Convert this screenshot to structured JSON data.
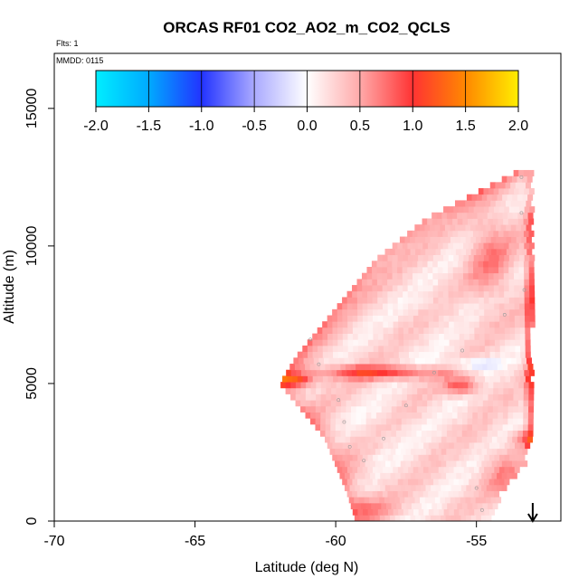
{
  "chart_data": {
    "type": "heatmap",
    "title": "ORCAS RF01 CO2_AO2_m_CO2_QCLS",
    "flights_label": "Flts: 1",
    "date_label": "MMDD: 0115",
    "xlabel": "Latitude (deg N)",
    "ylabel": "Altitude (m)",
    "xlim": [
      -70,
      -52
    ],
    "ylim": [
      0,
      17000
    ],
    "x_ticks": [
      -70,
      -65,
      -60,
      -55
    ],
    "y_ticks": [
      0,
      5000,
      10000,
      15000
    ],
    "colorbar": {
      "range": [
        -2.0,
        2.0
      ],
      "ticks": [
        "-2.0",
        "-1.5",
        "-1.0",
        "-0.5",
        "0.0",
        "0.5",
        "1.0",
        "1.5",
        "2.0"
      ],
      "stops": [
        {
          "v": -2.0,
          "color": "#00eeff"
        },
        {
          "v": -1.5,
          "color": "#00aaff"
        },
        {
          "v": -1.0,
          "color": "#2233ff"
        },
        {
          "v": -0.5,
          "color": "#aaaaff"
        },
        {
          "v": 0.0,
          "color": "#ffffff"
        },
        {
          "v": 0.5,
          "color": "#ffaaaa"
        },
        {
          "v": 1.0,
          "color": "#ff3333"
        },
        {
          "v": 1.5,
          "color": "#ff8800"
        },
        {
          "v": 2.0,
          "color": "#ffee00"
        }
      ]
    },
    "grid": {
      "lat_step": 0.18,
      "alt_step": 220,
      "boundary": [
        {
          "alt": 0,
          "lat_min": -59.3,
          "lat_max": -54.6
        },
        {
          "alt": 1000,
          "lat_min": -59.6,
          "lat_max": -54.2
        },
        {
          "alt": 2000,
          "lat_min": -60.0,
          "lat_max": -53.4
        },
        {
          "alt": 3000,
          "lat_min": -60.4,
          "lat_max": -53.1
        },
        {
          "alt": 4500,
          "lat_min": -61.6,
          "lat_max": -53.1
        },
        {
          "alt": 5000,
          "lat_min": -62.0,
          "lat_max": -53.1
        },
        {
          "alt": 6000,
          "lat_min": -61.4,
          "lat_max": -53.1
        },
        {
          "alt": 7000,
          "lat_min": -60.6,
          "lat_max": -53.1
        },
        {
          "alt": 8000,
          "lat_min": -59.8,
          "lat_max": -53.1
        },
        {
          "alt": 9500,
          "lat_min": -58.6,
          "lat_max": -53.1
        },
        {
          "alt": 11000,
          "lat_min": -56.8,
          "lat_max": -53.1
        },
        {
          "alt": 12800,
          "lat_min": -53.4,
          "lat_max": -53.1
        }
      ],
      "features": [
        {
          "lat": -53.1,
          "alt": 6500,
          "sl": 0.15,
          "sa": 6000,
          "v": 0.8
        },
        {
          "lat": -55.5,
          "alt": 4800,
          "sl": 0.6,
          "sa": 300,
          "v": 0.7
        },
        {
          "lat": -58.5,
          "alt": 5300,
          "sl": 2.2,
          "sa": 260,
          "v": 0.8
        },
        {
          "lat": -61.5,
          "alt": 5000,
          "sl": 0.7,
          "sa": 250,
          "v": 0.9
        },
        {
          "lat": -55.0,
          "alt": 5600,
          "sl": 0.8,
          "sa": 250,
          "v": -0.4
        },
        {
          "lat": -56.5,
          "alt": 5700,
          "sl": 1.3,
          "sa": 400,
          "v": -0.08
        },
        {
          "lat": -58.5,
          "alt": 3200,
          "sl": 1.5,
          "sa": 1000,
          "v": -0.06
        },
        {
          "lat": -58.5,
          "alt": 2300,
          "sl": 0.3,
          "sa": 120,
          "v": -0.12
        },
        {
          "lat": -56.0,
          "alt": 7800,
          "sl": 1.3,
          "sa": 500,
          "v": -0.05
        },
        {
          "lat": -54.0,
          "alt": 1500,
          "sl": 0.7,
          "sa": 900,
          "v": 0.35
        },
        {
          "lat": -54.5,
          "alt": 9500,
          "sl": 0.8,
          "sa": 1800,
          "v": 0.4
        },
        {
          "lat": -53.3,
          "alt": 2900,
          "sl": 0.4,
          "sa": 300,
          "v": 0.5
        },
        {
          "lat": -59.0,
          "alt": 400,
          "sl": 1.0,
          "sa": 400,
          "v": 0.3
        }
      ]
    },
    "flight_points": [
      {
        "lat": -60.9,
        "alt": 6600
      },
      {
        "lat": -60.6,
        "alt": 5700
      },
      {
        "lat": -59.9,
        "alt": 4400
      },
      {
        "lat": -59.7,
        "alt": 3600
      },
      {
        "lat": -59.5,
        "alt": 2700
      },
      {
        "lat": -59.0,
        "alt": 2200
      },
      {
        "lat": -58.3,
        "alt": 3000
      },
      {
        "lat": -57.5,
        "alt": 4200
      },
      {
        "lat": -56.5,
        "alt": 5400
      },
      {
        "lat": -55.5,
        "alt": 6200
      },
      {
        "lat": -54.0,
        "alt": 7500
      },
      {
        "lat": -53.3,
        "alt": 8400
      },
      {
        "lat": -53.4,
        "alt": 11200
      },
      {
        "lat": -53.4,
        "alt": 12500
      },
      {
        "lat": -55.0,
        "alt": 1200
      },
      {
        "lat": -54.8,
        "alt": 400
      }
    ],
    "arrow_lat": -53.0
  }
}
